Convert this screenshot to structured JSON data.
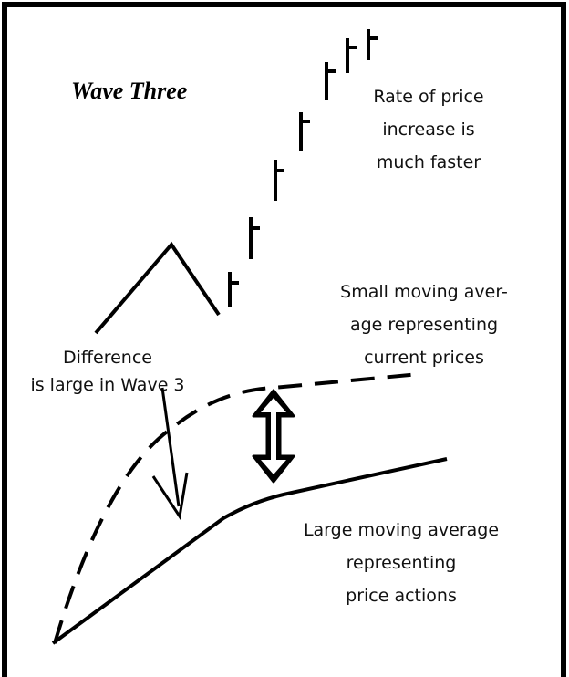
{
  "title": "Wave Three",
  "annotations": [
    {
      "lines": [
        "Rate of price",
        "increase is",
        "much faster"
      ]
    },
    {
      "lines": [
        "Small moving aver-",
        "age representing",
        "current prices"
      ]
    },
    {
      "lines": [
        "Difference",
        "is large in Wave  3"
      ]
    },
    {
      "lines": [
        "Large moving average",
        "representing",
        "price actions"
      ]
    }
  ]
}
